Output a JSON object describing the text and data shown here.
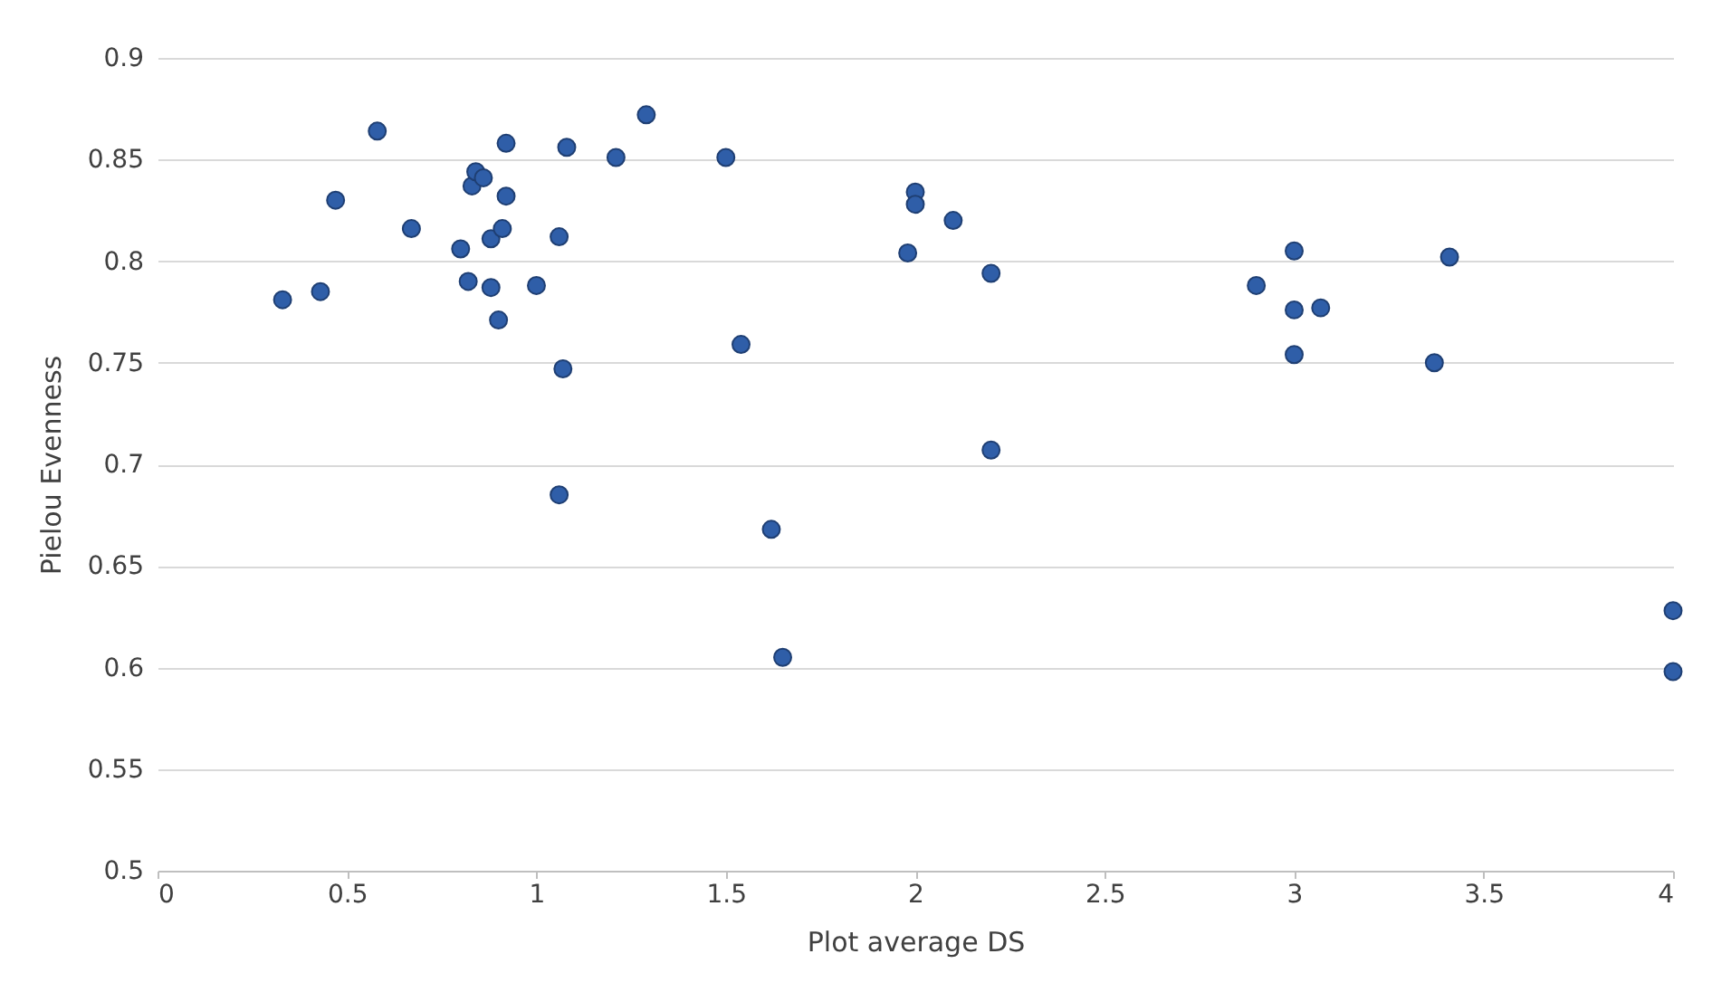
{
  "chart_data": {
    "type": "scatter",
    "xlabel": "Plot average DS",
    "ylabel": "Pielou Evenness",
    "xlim": [
      0,
      4
    ],
    "xticks": [
      0,
      0.5,
      1,
      1.5,
      2,
      2.5,
      3,
      3.5,
      4
    ],
    "ylim": [
      0.5,
      0.9
    ],
    "yticks": [
      0.5,
      0.55,
      0.6,
      0.65,
      0.7,
      0.75,
      0.8,
      0.85,
      0.9
    ],
    "grid": "y",
    "marker": "circle",
    "legend": false,
    "series": [
      {
        "color": "#2f5ea8",
        "x": [
          0.33,
          0.43,
          0.47,
          0.58,
          0.67,
          0.8,
          0.82,
          0.83,
          0.84,
          0.86,
          0.88,
          0.88,
          0.9,
          0.91,
          0.92,
          0.92,
          1.0,
          1.06,
          1.07,
          1.06,
          1.08,
          1.21,
          1.29,
          1.5,
          1.54,
          1.62,
          1.65,
          1.98,
          2.0,
          2.0,
          2.1,
          2.2,
          2.2,
          2.9,
          3.0,
          3.0,
          3.0,
          3.07,
          3.37,
          3.41,
          4.0,
          4.0
        ],
        "values": [
          0.781,
          0.785,
          0.83,
          0.864,
          0.816,
          0.806,
          0.79,
          0.837,
          0.844,
          0.841,
          0.811,
          0.787,
          0.771,
          0.816,
          0.832,
          0.858,
          0.788,
          0.812,
          0.747,
          0.685,
          0.856,
          0.851,
          0.872,
          0.851,
          0.759,
          0.668,
          0.605,
          0.804,
          0.834,
          0.828,
          0.82,
          0.794,
          0.707,
          0.788,
          0.805,
          0.776,
          0.754,
          0.777,
          0.75,
          0.802,
          0.628,
          0.598
        ]
      }
    ]
  }
}
